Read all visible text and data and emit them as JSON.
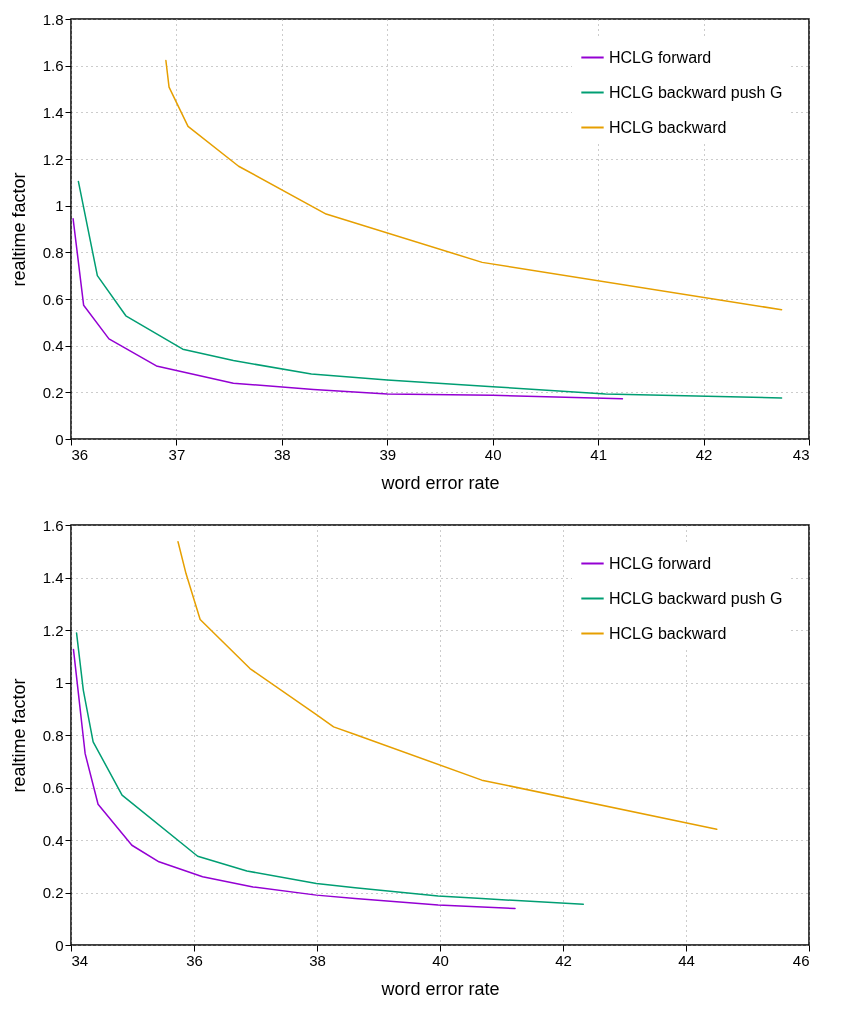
{
  "chart_data": [
    {
      "type": "line",
      "xlabel": "word error rate",
      "ylabel": "realtime factor",
      "xlim": [
        36,
        43
      ],
      "xticks": [
        36,
        37,
        38,
        39,
        40,
        41,
        42,
        43
      ],
      "ylim": [
        0,
        1.8
      ],
      "yticks": [
        0,
        0.2,
        0.4,
        0.6,
        0.8,
        1,
        1.2,
        1.4,
        1.6,
        1.8
      ],
      "grid": true,
      "legend": "top right",
      "line_style": "solid",
      "marker": "none",
      "series": [
        {
          "name": "HCLG forward",
          "color": "#9400d3",
          "x": [
            36.02,
            36.12,
            36.36,
            36.81,
            37.54,
            38.3,
            39,
            40,
            41.23
          ],
          "values": [
            0.944,
            0.573,
            0.429,
            0.313,
            0.239,
            0.212,
            0.193,
            0.187,
            0.172
          ]
        },
        {
          "name": "HCLG backward push G",
          "color": "#009e73",
          "x": [
            36.07,
            36.25,
            36.52,
            37.06,
            37.54,
            38.28,
            39,
            40,
            41.07,
            42.74
          ],
          "values": [
            1.104,
            0.7,
            0.528,
            0.385,
            0.336,
            0.279,
            0.253,
            0.224,
            0.193,
            0.176
          ]
        },
        {
          "name": "HCLG backward",
          "color": "#e69f00",
          "x": [
            36.9,
            36.93,
            37.11,
            37.59,
            38.42,
            39.9,
            42.74
          ],
          "values": [
            1.622,
            1.508,
            1.34,
            1.169,
            0.964,
            0.757,
            0.554
          ]
        }
      ]
    },
    {
      "type": "line",
      "xlabel": "word error rate",
      "ylabel": "realtime factor",
      "xlim": [
        34,
        46
      ],
      "xticks": [
        34,
        36,
        38,
        40,
        42,
        44,
        46
      ],
      "ylim": [
        0,
        1.6
      ],
      "yticks": [
        0,
        0.2,
        0.4,
        0.6,
        0.8,
        1,
        1.2,
        1.4,
        1.6
      ],
      "grid": true,
      "legend": "top right",
      "line_style": "solid",
      "marker": "none",
      "series": [
        {
          "name": "HCLG forward",
          "color": "#9400d3",
          "x": [
            34.04,
            34.23,
            34.44,
            34.99,
            35.43,
            36.14,
            36.96,
            37.99,
            38.62,
            39.97,
            41.22
          ],
          "values": [
            1.126,
            0.729,
            0.536,
            0.38,
            0.317,
            0.26,
            0.221,
            0.19,
            0.177,
            0.152,
            0.139
          ]
        },
        {
          "name": "HCLG backward push G",
          "color": "#009e73",
          "x": [
            34.09,
            34.2,
            34.36,
            34.83,
            36.06,
            36.86,
            37.99,
            38.62,
            39.97,
            40.68,
            42.33
          ],
          "values": [
            1.189,
            0.971,
            0.774,
            0.571,
            0.338,
            0.282,
            0.234,
            0.218,
            0.187,
            0.177,
            0.155
          ]
        },
        {
          "name": "HCLG backward",
          "color": "#e69f00",
          "x": [
            35.74,
            35.87,
            36.1,
            36.91,
            37.99,
            38.27,
            38.62,
            40.68,
            44.5
          ],
          "values": [
            1.536,
            1.415,
            1.24,
            1.053,
            0.878,
            0.831,
            0.802,
            0.628,
            0.441
          ]
        }
      ]
    }
  ]
}
